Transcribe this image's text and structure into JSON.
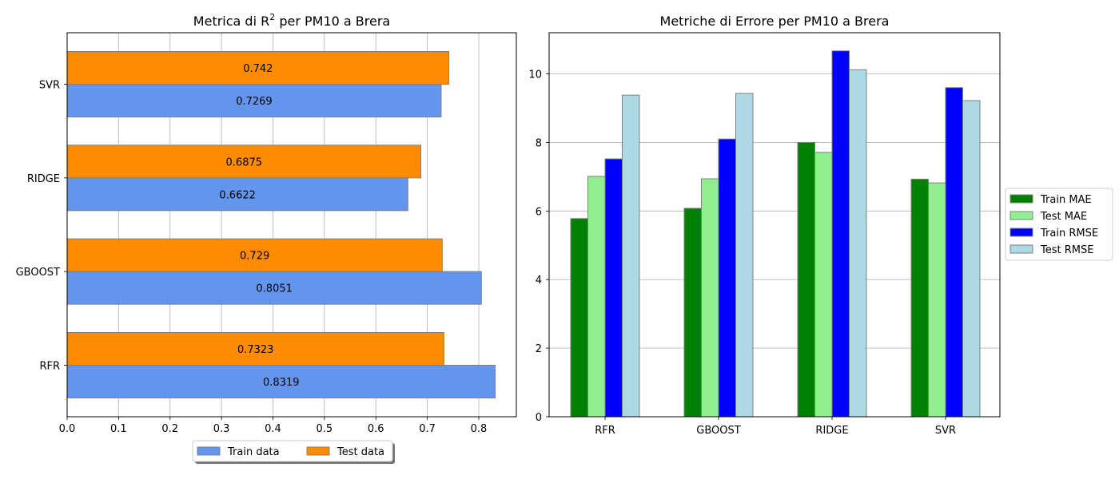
{
  "charts": [
    {
      "id": "r2",
      "type": "bar",
      "orientation": "horizontal",
      "title_prefix": "Metrica di R",
      "title_sup": "2",
      "title_suffix": " per PM10 a Brera",
      "categories": [
        "RFR",
        "GBOOST",
        "RIDGE",
        "SVR"
      ],
      "series": [
        {
          "name": "Train data",
          "color": "#6495ed",
          "values": [
            0.8319,
            0.8051,
            0.6622,
            0.7269
          ]
        },
        {
          "name": "Test data",
          "color": "#ff8c00",
          "values": [
            0.7323,
            0.729,
            0.6875,
            0.742
          ]
        }
      ],
      "value_labels": {
        "Train data": [
          "0.8319",
          "0.8051",
          "0.6622",
          "0.7269"
        ],
        "Test data": [
          "0.7323",
          "0.729",
          "0.6875",
          "0.742"
        ]
      },
      "xticks": [
        "0.0",
        "0.1",
        "0.2",
        "0.3",
        "0.4",
        "0.5",
        "0.6",
        "0.7",
        "0.8"
      ],
      "xlim": [
        0,
        0.873
      ],
      "grid": "x",
      "legend": "bottom-center"
    },
    {
      "id": "errors",
      "type": "bar",
      "orientation": "vertical",
      "title": "Metriche di Errore per PM10 a Brera",
      "categories": [
        "RFR",
        "GBOOST",
        "RIDGE",
        "SVR"
      ],
      "series": [
        {
          "name": "Train MAE",
          "color": "#008000",
          "values": [
            5.78,
            6.08,
            8.0,
            6.93
          ]
        },
        {
          "name": "Test MAE",
          "color": "#90ee90",
          "values": [
            7.01,
            6.94,
            7.71,
            6.82
          ]
        },
        {
          "name": "Train RMSE",
          "color": "#0000ff",
          "values": [
            7.52,
            8.1,
            10.67,
            9.6
          ]
        },
        {
          "name": "Test RMSE",
          "color": "#add8e6",
          "values": [
            9.38,
            9.43,
            10.12,
            9.22
          ]
        }
      ],
      "yticks": [
        "0",
        "2",
        "4",
        "6",
        "8",
        "10"
      ],
      "ylim": [
        0,
        11.2
      ],
      "grid": "y",
      "legend": "right"
    }
  ]
}
